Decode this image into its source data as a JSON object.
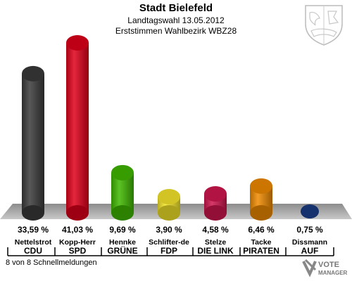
{
  "header": {
    "title": "Stadt Bielefeld",
    "subtitle1": "Landtagswahl 13.05.2012",
    "subtitle2": "Erststimmen Wahlbezirk WBZ28"
  },
  "footer": {
    "status": "8 von 8 Schnellmeldungen"
  },
  "logo": {
    "line1": "VOTE",
    "line2": "MANAGER"
  },
  "chart_data": {
    "type": "bar",
    "title": "Stadt Bielefeld",
    "categories": [
      "Nettelstrot",
      "Kopp-Herr",
      "Hennke",
      "Schlifter-de",
      "Stelze",
      "Tacke",
      "Dissmann"
    ],
    "parties": [
      "CDU",
      "SPD",
      "GRÜNE",
      "FDP",
      "DIE LINK",
      "PIRATEN",
      "AUF"
    ],
    "values": [
      33.59,
      41.03,
      9.69,
      3.9,
      4.58,
      6.46,
      0.75
    ],
    "value_labels": [
      "33,59 %",
      "41,03 %",
      "9,69 %",
      "3,90 %",
      "4,58 %",
      "6,46 %",
      "0,75 %"
    ],
    "colors": [
      "#3a3a3a",
      "#e0001a",
      "#3fb800",
      "#f6e62a",
      "#d0164e",
      "#f08a00",
      "#17367a"
    ],
    "ylim": [
      0,
      42
    ],
    "grid": false,
    "legend": "none"
  }
}
